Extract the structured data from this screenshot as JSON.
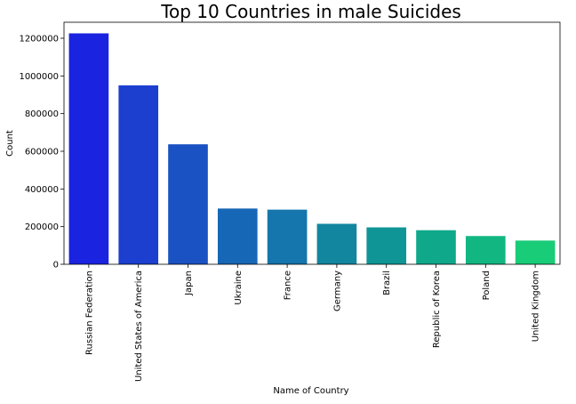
{
  "chart_data": {
    "type": "bar",
    "title": "Top 10 Countries in male Suicides",
    "xlabel": "Name of Country",
    "ylabel": "Count",
    "categories": [
      "Russian Federation",
      "United States of America",
      "Japan",
      "Ukraine",
      "France",
      "Germany",
      "Brazil",
      "Republic of Korea",
      "Poland",
      "United Kingdom"
    ],
    "values": [
      1226000,
      950000,
      637000,
      296000,
      290000,
      215000,
      196000,
      181000,
      150000,
      126000
    ],
    "colors": [
      "#1a23df",
      "#1c3fd0",
      "#1a52c3",
      "#1667b6",
      "#1575ad",
      "#12869f",
      "#109596",
      "#0fa88b",
      "#12b681",
      "#19cc78"
    ],
    "ylim": [
      0,
      1285000
    ],
    "yticks": [
      0,
      200000,
      400000,
      600000,
      800000,
      1000000,
      1200000
    ],
    "ytick_labels": [
      "0",
      "200000",
      "400000",
      "600000",
      "800000",
      "1000000",
      "1200000"
    ],
    "grid": false,
    "legend": "none"
  }
}
